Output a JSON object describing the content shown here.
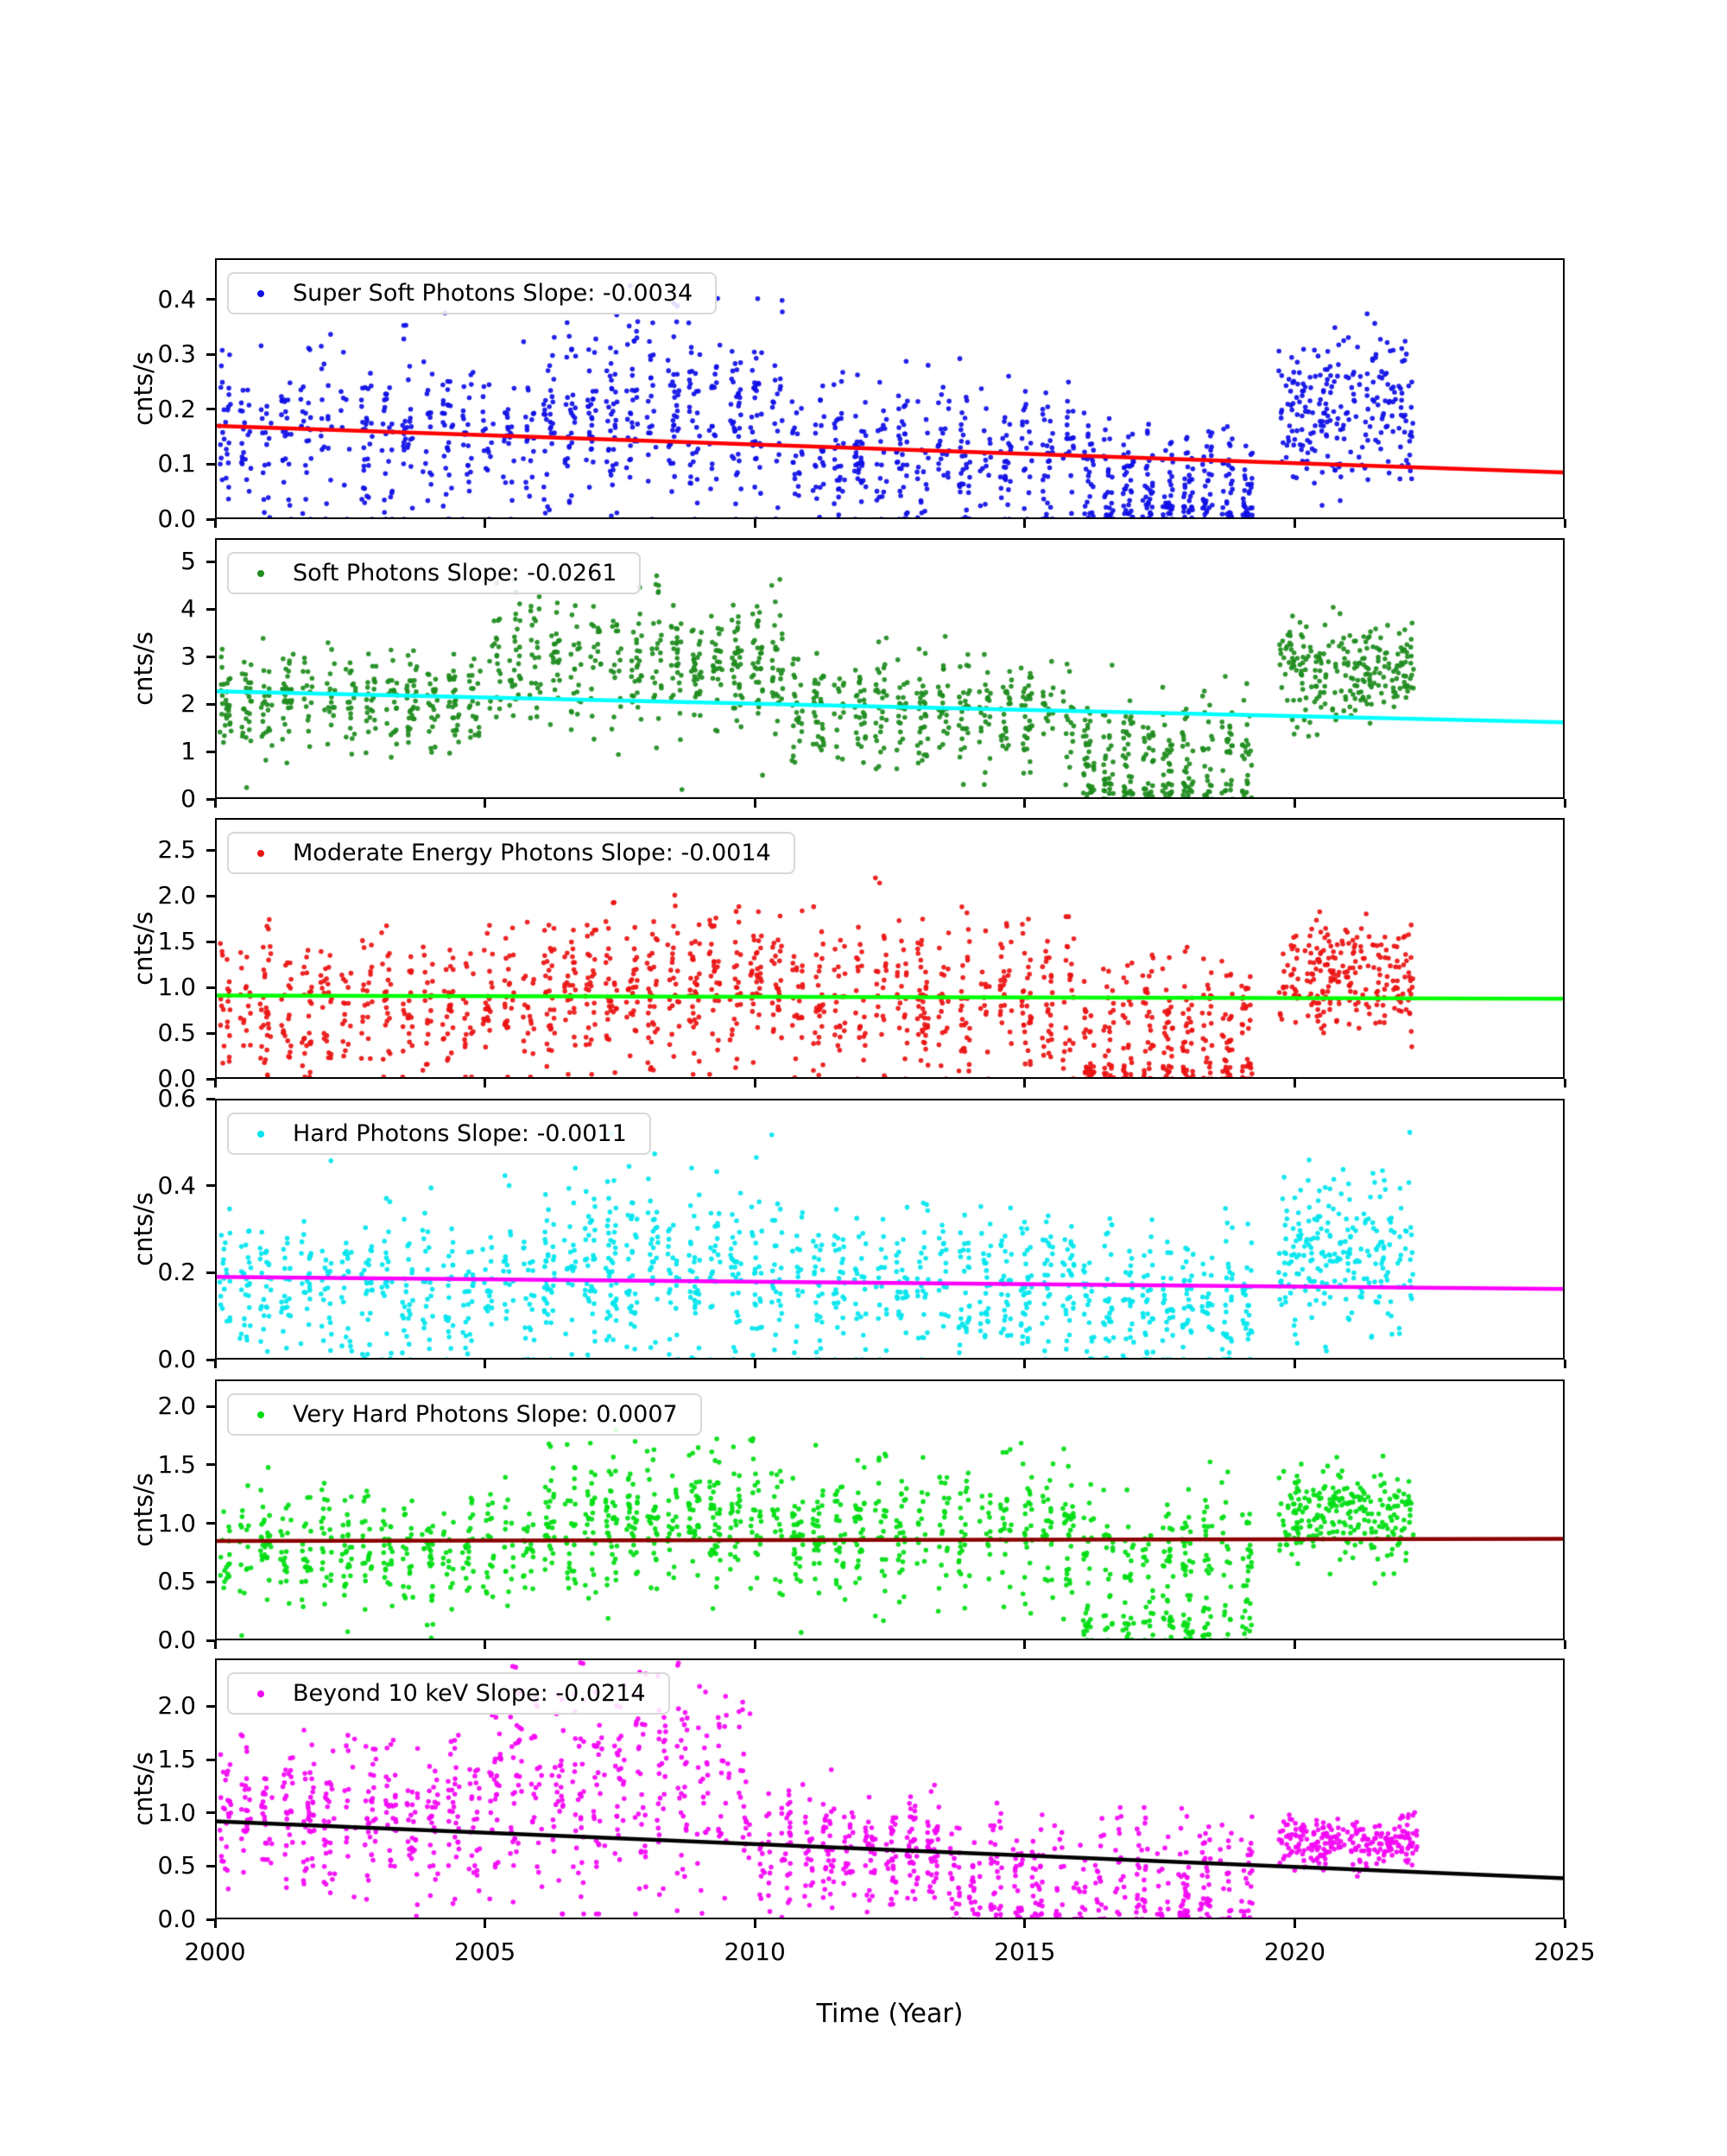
{
  "chart_data": {
    "type": "scatter",
    "title": "",
    "xlabel": "Time (Year)",
    "xlim": [
      2000,
      2025
    ],
    "grid": false,
    "legend_position": "upper left",
    "xticks": {
      "values": [
        2000,
        2005,
        2010,
        2015,
        2020,
        2025
      ],
      "labels": [
        "2000",
        "2005",
        "2010",
        "2015",
        "2020",
        "2025"
      ]
    },
    "panels": [
      {
        "id": "super-soft-photons",
        "legend_label": "Super Soft Photons Slope: -0.0034",
        "slope": -0.0034,
        "ylabel": "cnts/s",
        "ylim": [
          0,
          0.475
        ],
        "yticks": {
          "values": [
            0,
            0.1,
            0.2,
            0.3,
            0.4
          ],
          "labels": [
            "0.0",
            "0.1",
            "0.2",
            "0.3",
            "0.4"
          ]
        },
        "point_color": "#0f0fe6",
        "trend_color": "#ff0000",
        "trend": {
          "x": [
            2000,
            2025
          ],
          "y": [
            0.17,
            0.085
          ]
        },
        "seed": 11,
        "segments": [
          {
            "x": [
              2000,
              2006
            ],
            "n": 340,
            "mean": 0.155,
            "sd": 0.075,
            "clip": [
              0,
              0.385
            ],
            "dense": false
          },
          {
            "x": [
              2006,
              2010.6
            ],
            "n": 340,
            "mean": 0.19,
            "sd": 0.085,
            "clip": [
              0,
              0.43
            ],
            "dense": false
          },
          {
            "x": [
              2010.6,
              2016
            ],
            "n": 340,
            "mean": 0.115,
            "sd": 0.065,
            "clip": [
              0,
              0.37
            ],
            "dense": false
          },
          {
            "x": [
              2016,
              2019.3
            ],
            "n": 200,
            "mean": 0.075,
            "sd": 0.055,
            "clip": [
              0,
              0.3
            ],
            "dense": false
          },
          {
            "x": [
              2016,
              2019.3
            ],
            "n": 85,
            "mean": 0.012,
            "sd": 0.012,
            "clip": [
              0,
              0.05
            ],
            "dense": false
          },
          {
            "x": [
              2019.7,
              2022.2
            ],
            "n": 230,
            "mean": 0.2,
            "sd": 0.07,
            "clip": [
              0.01,
              0.385
            ],
            "dense": true
          }
        ]
      },
      {
        "id": "soft-photons",
        "legend_label": "Soft Photons Slope: -0.0261",
        "slope": -0.0261,
        "ylabel": "cnts/s",
        "ylim": [
          0,
          5.5
        ],
        "yticks": {
          "values": [
            0,
            1,
            2,
            3,
            4,
            5
          ],
          "labels": [
            "0",
            "1",
            "2",
            "3",
            "4",
            "5"
          ]
        },
        "point_color": "#1e8c1e",
        "trend_color": "#00ffff",
        "trend": {
          "x": [
            2000,
            2025
          ],
          "y": [
            2.27,
            1.617
          ]
        },
        "seed": 22,
        "segments": [
          {
            "x": [
              2000,
              2005
            ],
            "n": 310,
            "mean": 2.0,
            "sd": 0.55,
            "clip": [
              0.05,
              3.7
            ],
            "dense": false
          },
          {
            "x": [
              2005,
              2010.6
            ],
            "n": 390,
            "mean": 2.85,
            "sd": 0.75,
            "clip": [
              0.2,
              5.45
            ],
            "dense": false
          },
          {
            "x": [
              2010.6,
              2016
            ],
            "n": 340,
            "mean": 1.8,
            "sd": 0.6,
            "clip": [
              0.05,
              3.6
            ],
            "dense": false
          },
          {
            "x": [
              2016,
              2019.3
            ],
            "n": 180,
            "mean": 1.1,
            "sd": 0.65,
            "clip": [
              0,
              2.9
            ],
            "dense": false
          },
          {
            "x": [
              2016,
              2019.3
            ],
            "n": 95,
            "mean": 0.18,
            "sd": 0.15,
            "clip": [
              0,
              0.55
            ],
            "dense": false
          },
          {
            "x": [
              2019.7,
              2022.2
            ],
            "n": 230,
            "mean": 2.7,
            "sd": 0.5,
            "clip": [
              1.1,
              4.3
            ],
            "dense": true
          }
        ]
      },
      {
        "id": "moderate-energy-photons",
        "legend_label": "Moderate Energy Photons Slope: -0.0014",
        "slope": -0.0014,
        "ylabel": "cnts/s",
        "ylim": [
          0,
          2.85
        ],
        "yticks": {
          "values": [
            0,
            0.5,
            1.0,
            1.5,
            2.0,
            2.5
          ],
          "labels": [
            "0.0",
            "0.5",
            "1.0",
            "1.5",
            "2.0",
            "2.5"
          ]
        },
        "point_color": "#ea1313",
        "trend_color": "#00ff00",
        "trend": {
          "x": [
            2000,
            2025
          ],
          "y": [
            0.91,
            0.875
          ]
        },
        "seed": 33,
        "segments": [
          {
            "x": [
              2000,
              2006
            ],
            "n": 340,
            "mean": 0.8,
            "sd": 0.42,
            "clip": [
              0.02,
              2.2
            ],
            "dense": false
          },
          {
            "x": [
              2006,
              2010.6
            ],
            "n": 340,
            "mean": 1.0,
            "sd": 0.45,
            "clip": [
              0.05,
              2.65
            ],
            "dense": false
          },
          {
            "x": [
              2010.6,
              2016
            ],
            "n": 340,
            "mean": 0.85,
            "sd": 0.45,
            "clip": [
              0,
              2.6
            ],
            "dense": false
          },
          {
            "x": [
              2016,
              2019.3
            ],
            "n": 190,
            "mean": 0.6,
            "sd": 0.4,
            "clip": [
              0,
              1.9
            ],
            "dense": false
          },
          {
            "x": [
              2016,
              2019.3
            ],
            "n": 90,
            "mean": 0.08,
            "sd": 0.07,
            "clip": [
              0,
              0.28
            ],
            "dense": false
          },
          {
            "x": [
              2019.7,
              2022.2
            ],
            "n": 230,
            "mean": 1.15,
            "sd": 0.3,
            "clip": [
              0.35,
              2.1
            ],
            "dense": true
          }
        ]
      },
      {
        "id": "hard-photons",
        "legend_label": "Hard Photons Slope: -0.0011",
        "slope": -0.0011,
        "ylabel": "cnts/s",
        "ylim": [
          0,
          0.6
        ],
        "yticks": {
          "values": [
            0,
            0.2,
            0.4,
            0.6
          ],
          "labels": [
            "0.0",
            "0.2",
            "0.4",
            "0.6"
          ]
        },
        "point_color": "#00e5ee",
        "trend_color": "#ff00ff",
        "trend": {
          "x": [
            2000,
            2025
          ],
          "y": [
            0.19,
            0.1625
          ]
        },
        "seed": 44,
        "segments": [
          {
            "x": [
              2000,
              2006
            ],
            "n": 340,
            "mean": 0.165,
            "sd": 0.085,
            "clip": [
              0,
              0.52
            ],
            "dense": false
          },
          {
            "x": [
              2006,
              2010.6
            ],
            "n": 340,
            "mean": 0.205,
            "sd": 0.1,
            "clip": [
              0,
              0.585
            ],
            "dense": false
          },
          {
            "x": [
              2010.6,
              2016
            ],
            "n": 340,
            "mean": 0.17,
            "sd": 0.09,
            "clip": [
              0,
              0.56
            ],
            "dense": false
          },
          {
            "x": [
              2016,
              2019.3
            ],
            "n": 230,
            "mean": 0.13,
            "sd": 0.085,
            "clip": [
              0,
              0.5
            ],
            "dense": false
          },
          {
            "x": [
              2019.7,
              2022.2
            ],
            "n": 230,
            "mean": 0.24,
            "sd": 0.09,
            "clip": [
              0.02,
              0.55
            ],
            "dense": true
          }
        ]
      },
      {
        "id": "very-hard-photons",
        "legend_label": "Very Hard Photons Slope: 0.0007",
        "slope": 0.0007,
        "ylabel": "cnts/s",
        "ylim": [
          0,
          2.23
        ],
        "yticks": {
          "values": [
            0,
            0.5,
            1.0,
            1.5,
            2.0
          ],
          "labels": [
            "0.0",
            "0.5",
            "1.0",
            "1.5",
            "2.0"
          ]
        },
        "point_color": "#00dd12",
        "trend_color": "#8b0000",
        "trend": {
          "x": [
            2000,
            2025
          ],
          "y": [
            0.85,
            0.8675
          ]
        },
        "seed": 55,
        "segments": [
          {
            "x": [
              2000,
              2006
            ],
            "n": 340,
            "mean": 0.78,
            "sd": 0.26,
            "clip": [
              0.02,
              1.65
            ],
            "dense": false
          },
          {
            "x": [
              2006,
              2010.6
            ],
            "n": 340,
            "mean": 1.02,
            "sd": 0.3,
            "clip": [
              0.08,
              2.1
            ],
            "dense": false
          },
          {
            "x": [
              2010.6,
              2016
            ],
            "n": 340,
            "mean": 0.95,
            "sd": 0.3,
            "clip": [
              0,
              1.85
            ],
            "dense": false
          },
          {
            "x": [
              2016,
              2019.3
            ],
            "n": 175,
            "mean": 0.72,
            "sd": 0.3,
            "clip": [
              0,
              1.6
            ],
            "dense": false
          },
          {
            "x": [
              2016,
              2019.3
            ],
            "n": 100,
            "mean": 0.1,
            "sd": 0.1,
            "clip": [
              0,
              0.38
            ],
            "dense": false
          },
          {
            "x": [
              2019.7,
              2022.2
            ],
            "n": 240,
            "mean": 1.05,
            "sd": 0.2,
            "clip": [
              0.35,
              1.85
            ],
            "dense": true
          }
        ]
      },
      {
        "id": "beyond-10-kev",
        "legend_label": "Beyond 10 keV Slope: -0.0214",
        "slope": -0.0214,
        "ylabel": "cnts/s",
        "ylim": [
          0,
          2.45
        ],
        "yticks": {
          "values": [
            0,
            0.5,
            1.0,
            1.5,
            2.0
          ],
          "labels": [
            "0.0",
            "0.5",
            "1.0",
            "1.5",
            "2.0"
          ]
        },
        "point_color": "#f406f4",
        "trend_color": "#000000",
        "trend": {
          "x": [
            2000,
            2025
          ],
          "y": [
            0.92,
            0.385
          ]
        },
        "seed": 66,
        "segments": [
          {
            "x": [
              2000,
              2005
            ],
            "n": 340,
            "mean": 1.0,
            "sd": 0.38,
            "clip": [
              0.03,
              1.8
            ],
            "dense": false
          },
          {
            "x": [
              2005,
              2010
            ],
            "n": 340,
            "mean": 1.3,
            "sd": 0.55,
            "clip": [
              0.05,
              2.43
            ],
            "dense": false
          },
          {
            "x": [
              2010,
              2013.5
            ],
            "n": 260,
            "mean": 0.65,
            "sd": 0.26,
            "clip": [
              0.02,
              1.5
            ],
            "dense": false
          },
          {
            "x": [
              2013.5,
              2019.3
            ],
            "n": 270,
            "mean": 0.45,
            "sd": 0.28,
            "clip": [
              0,
              1.15
            ],
            "dense": false
          },
          {
            "x": [
              2013.5,
              2019.3
            ],
            "n": 95,
            "mean": 0.06,
            "sd": 0.06,
            "clip": [
              0,
              0.22
            ],
            "dense": false
          },
          {
            "x": [
              2019.7,
              2022.3
            ],
            "n": 240,
            "mean": 0.72,
            "sd": 0.12,
            "clip": [
              0.28,
              1.05
            ],
            "dense": true
          }
        ]
      }
    ]
  }
}
